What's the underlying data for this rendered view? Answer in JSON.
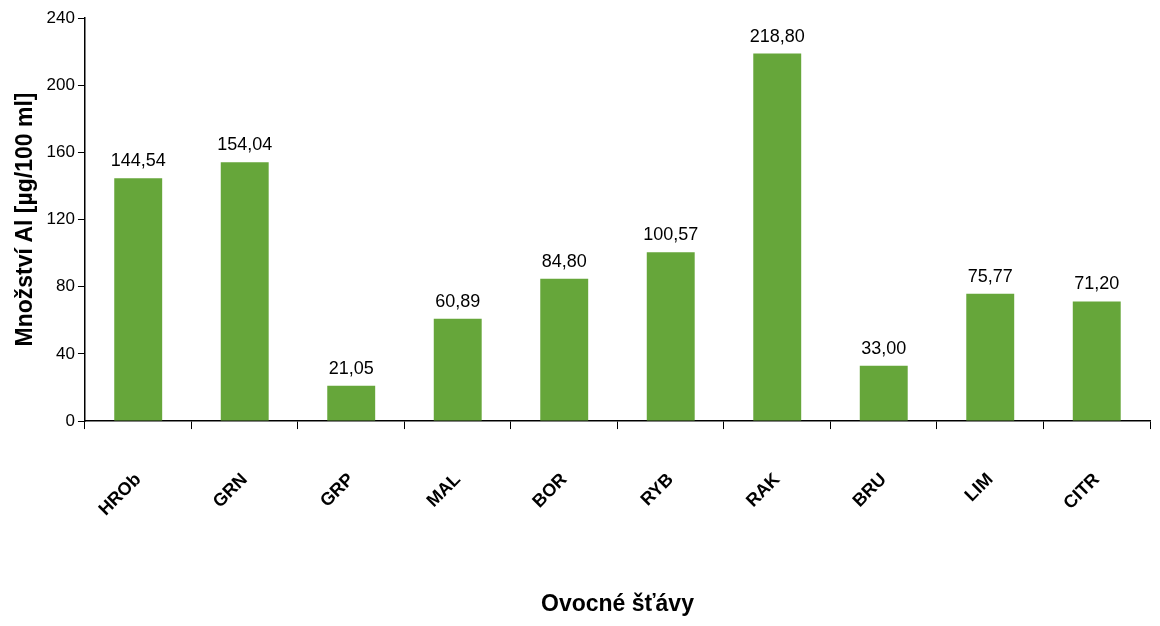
{
  "chart_data": {
    "type": "bar",
    "xlabel": "Ovocné šťávy",
    "ylabel": "Množství Al [µg/100 ml]",
    "categories": [
      "HROb",
      "GRN",
      "GRP",
      "MAL",
      "BOR",
      "RYB",
      "RAK",
      "BRU",
      "LIM",
      "CITR"
    ],
    "values": [
      144.54,
      154.04,
      21.05,
      60.89,
      84.8,
      100.57,
      218.8,
      33.0,
      75.77,
      71.2
    ],
    "value_labels": [
      "144,54",
      "154,04",
      "21,05",
      "60,89",
      "84,80",
      "100,57",
      "218,80",
      "33,00",
      "75,77",
      "71,20"
    ],
    "color": "#66a63a",
    "ylim": [
      0,
      240
    ],
    "yticks": [
      0,
      40,
      80,
      120,
      160,
      200,
      240
    ],
    "grid": false,
    "legend": false
  }
}
